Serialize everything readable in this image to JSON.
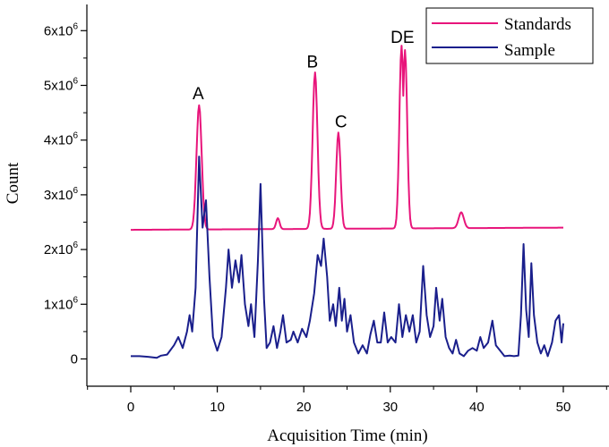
{
  "chart_data": {
    "type": "line",
    "title": "",
    "xlabel": "Acquisition Time (min)",
    "ylabel": "Count",
    "xlim": [
      -5,
      55
    ],
    "ylim": [
      -500000,
      6500000
    ],
    "x_ticks": [
      0,
      10,
      20,
      30,
      40,
      50
    ],
    "x_tick_labels": [
      "0",
      "10",
      "20",
      "30",
      "40",
      "50"
    ],
    "y_ticks": [
      0,
      1000000,
      2000000,
      3000000,
      4000000,
      5000000,
      6000000
    ],
    "y_tick_labels": [
      {
        "mantissa": "0",
        "exponent": ""
      },
      {
        "mantissa": "1x10",
        "exponent": "6"
      },
      {
        "mantissa": "2x10",
        "exponent": "6"
      },
      {
        "mantissa": "3x10",
        "exponent": "6"
      },
      {
        "mantissa": "4x10",
        "exponent": "6"
      },
      {
        "mantissa": "5x10",
        "exponent": "6"
      },
      {
        "mantissa": "6x10",
        "exponent": "6"
      }
    ],
    "legend_position": "top-right",
    "series": [
      {
        "name": "Standards",
        "color": "#e8157b",
        "baseline": 2360000,
        "baseline_end": 2400000,
        "x_start": 0,
        "x_end": 50,
        "peaks": [
          {
            "x": 7.9,
            "y": 4630000,
            "w": 0.3
          },
          {
            "x": 17.0,
            "y": 2560000,
            "w": 0.2
          },
          {
            "x": 21.3,
            "y": 5220000,
            "w": 0.28
          },
          {
            "x": 24.0,
            "y": 4120000,
            "w": 0.25
          },
          {
            "x": 31.3,
            "y": 5700000,
            "w": 0.25
          },
          {
            "x": 31.7,
            "y": 5620000,
            "w": 0.25
          },
          {
            "x": 38.2,
            "y": 2650000,
            "w": 0.3
          }
        ]
      },
      {
        "name": "Sample",
        "color": "#1a1f8c",
        "baseline": 50000,
        "x_start": 0,
        "x_end": 50,
        "points": [
          [
            0,
            50000
          ],
          [
            1,
            50000
          ],
          [
            2,
            40000
          ],
          [
            3,
            20000
          ],
          [
            3.5,
            60000
          ],
          [
            4.2,
            80000
          ],
          [
            5,
            250000
          ],
          [
            5.5,
            400000
          ],
          [
            6,
            200000
          ],
          [
            6.5,
            500000
          ],
          [
            6.8,
            800000
          ],
          [
            7.1,
            500000
          ],
          [
            7.5,
            1300000
          ],
          [
            7.9,
            3700000
          ],
          [
            8.3,
            2400000
          ],
          [
            8.7,
            2900000
          ],
          [
            9.1,
            1500000
          ],
          [
            9.5,
            400000
          ],
          [
            10,
            150000
          ],
          [
            10.5,
            400000
          ],
          [
            11,
            1300000
          ],
          [
            11.3,
            2000000
          ],
          [
            11.7,
            1300000
          ],
          [
            12.1,
            1800000
          ],
          [
            12.5,
            1400000
          ],
          [
            12.8,
            1900000
          ],
          [
            13.2,
            1000000
          ],
          [
            13.6,
            600000
          ],
          [
            13.9,
            1000000
          ],
          [
            14.3,
            400000
          ],
          [
            14.7,
            1800000
          ],
          [
            15.0,
            3200000
          ],
          [
            15.4,
            1100000
          ],
          [
            15.7,
            200000
          ],
          [
            16.1,
            300000
          ],
          [
            16.5,
            600000
          ],
          [
            16.9,
            200000
          ],
          [
            17.3,
            500000
          ],
          [
            17.6,
            800000
          ],
          [
            18,
            300000
          ],
          [
            18.5,
            350000
          ],
          [
            18.8,
            500000
          ],
          [
            19.3,
            300000
          ],
          [
            19.8,
            550000
          ],
          [
            20.3,
            400000
          ],
          [
            20.7,
            700000
          ],
          [
            21.2,
            1200000
          ],
          [
            21.6,
            1900000
          ],
          [
            22.0,
            1700000
          ],
          [
            22.3,
            2200000
          ],
          [
            22.7,
            1500000
          ],
          [
            23.0,
            700000
          ],
          [
            23.4,
            1000000
          ],
          [
            23.7,
            600000
          ],
          [
            24.1,
            1300000
          ],
          [
            24.4,
            700000
          ],
          [
            24.7,
            1100000
          ],
          [
            25.0,
            500000
          ],
          [
            25.4,
            800000
          ],
          [
            25.8,
            300000
          ],
          [
            26.3,
            100000
          ],
          [
            26.8,
            250000
          ],
          [
            27.3,
            100000
          ],
          [
            27.7,
            450000
          ],
          [
            28.1,
            700000
          ],
          [
            28.5,
            300000
          ],
          [
            28.9,
            300000
          ],
          [
            29.3,
            850000
          ],
          [
            29.7,
            300000
          ],
          [
            30.1,
            400000
          ],
          [
            30.6,
            300000
          ],
          [
            31.0,
            1000000
          ],
          [
            31.4,
            400000
          ],
          [
            31.8,
            800000
          ],
          [
            32.2,
            500000
          ],
          [
            32.6,
            800000
          ],
          [
            33.0,
            300000
          ],
          [
            33.4,
            500000
          ],
          [
            33.8,
            1700000
          ],
          [
            34.2,
            800000
          ],
          [
            34.6,
            400000
          ],
          [
            35.0,
            600000
          ],
          [
            35.3,
            1300000
          ],
          [
            35.7,
            700000
          ],
          [
            36.0,
            1100000
          ],
          [
            36.4,
            400000
          ],
          [
            36.8,
            200000
          ],
          [
            37.2,
            100000
          ],
          [
            37.6,
            350000
          ],
          [
            38.0,
            100000
          ],
          [
            38.5,
            50000
          ],
          [
            39,
            150000
          ],
          [
            39.5,
            200000
          ],
          [
            40,
            150000
          ],
          [
            40.4,
            400000
          ],
          [
            40.8,
            200000
          ],
          [
            41.3,
            300000
          ],
          [
            41.8,
            700000
          ],
          [
            42.2,
            250000
          ],
          [
            42.7,
            150000
          ],
          [
            43.2,
            50000
          ],
          [
            43.8,
            60000
          ],
          [
            44.3,
            50000
          ],
          [
            44.8,
            60000
          ],
          [
            45.1,
            800000
          ],
          [
            45.4,
            2100000
          ],
          [
            45.7,
            900000
          ],
          [
            46.0,
            400000
          ],
          [
            46.3,
            1750000
          ],
          [
            46.6,
            800000
          ],
          [
            47.0,
            300000
          ],
          [
            47.4,
            100000
          ],
          [
            47.8,
            250000
          ],
          [
            48.2,
            50000
          ],
          [
            48.7,
            300000
          ],
          [
            49.1,
            700000
          ],
          [
            49.5,
            800000
          ],
          [
            49.8,
            300000
          ],
          [
            50.0,
            650000
          ]
        ]
      }
    ],
    "annotations": [
      {
        "text": "A",
        "x": 7.8,
        "y": 4750000
      },
      {
        "text": "B",
        "x": 21.0,
        "y": 5330000
      },
      {
        "text": "C",
        "x": 24.3,
        "y": 4230000
      },
      {
        "text": "DE",
        "x": 31.4,
        "y": 5780000
      }
    ]
  }
}
